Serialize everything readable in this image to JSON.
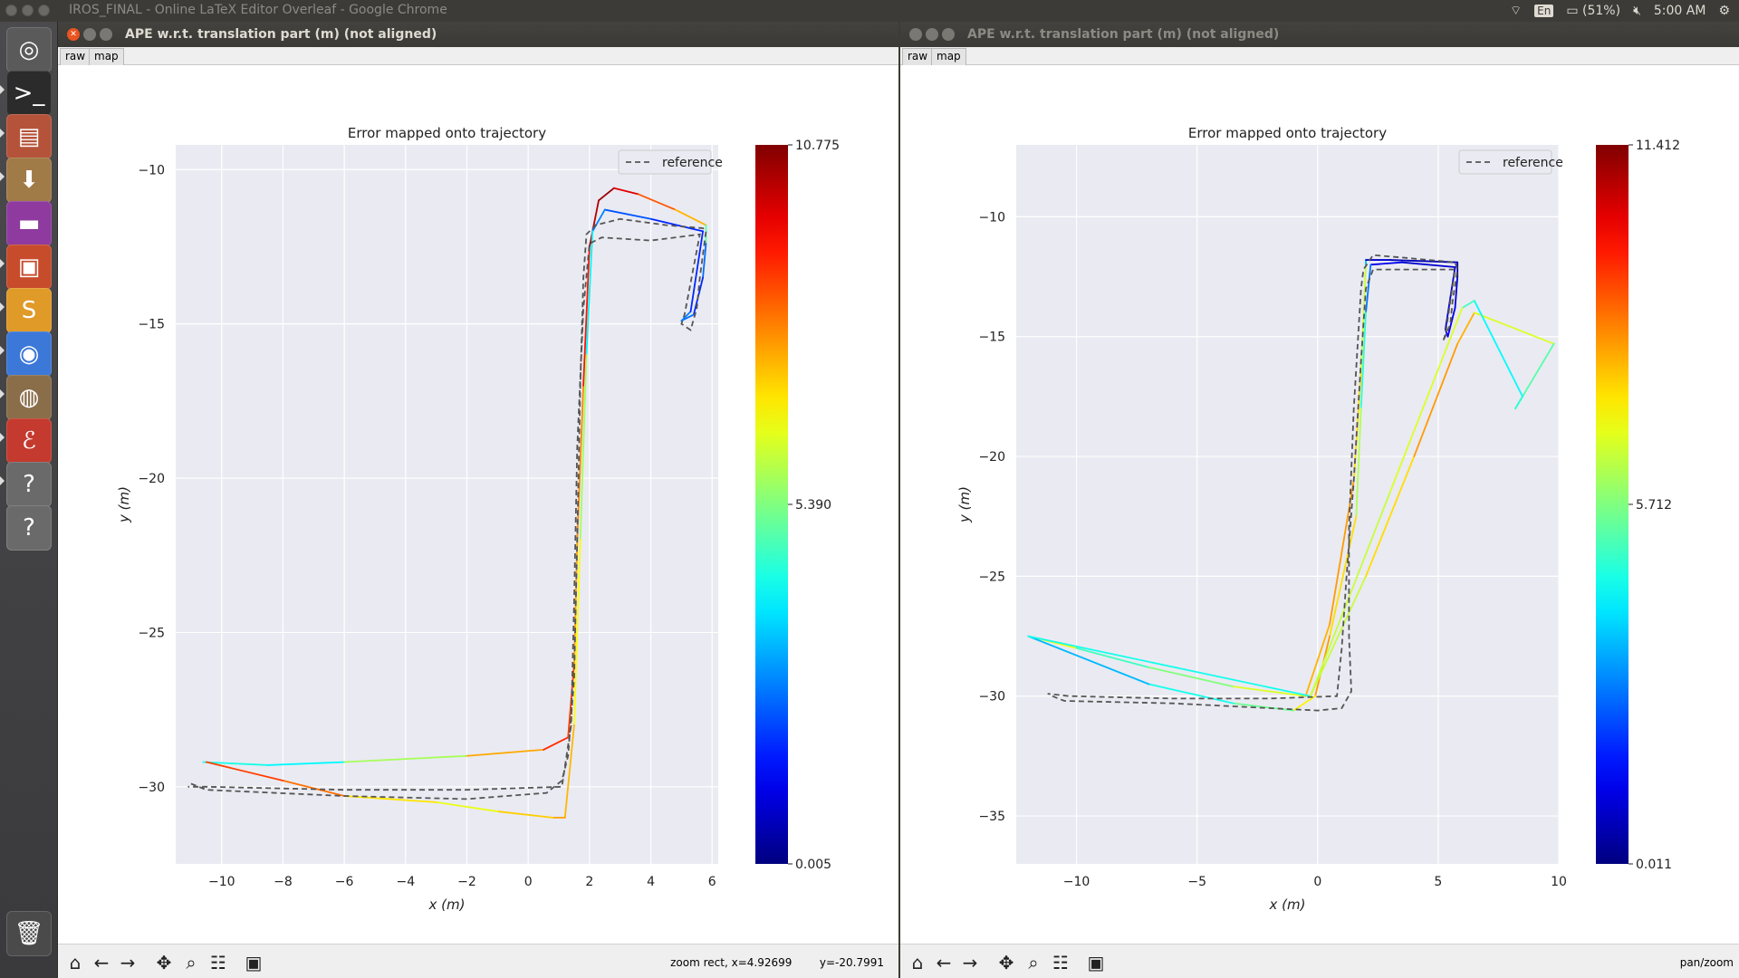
{
  "desktop": {
    "background_title": "IROS_FINAL - Online LaTeX Editor Overleaf - Google Chrome",
    "tray": {
      "language": "En",
      "battery": "(51%)",
      "clock": "5:00 AM"
    }
  },
  "launcher": {
    "items": [
      {
        "name": "ubuntu-dash-icon",
        "glyph": "◎",
        "color": "#5a5a5a"
      },
      {
        "name": "terminal-icon",
        "glyph": ">_",
        "color": "#2b2b2b"
      },
      {
        "name": "file-cabinet-icon",
        "glyph": "▤",
        "color": "#b5533a"
      },
      {
        "name": "archive-download-icon",
        "glyph": "⬇",
        "color": "#a07a47"
      },
      {
        "name": "app-window-icon",
        "glyph": "▬",
        "color": "#8e3a9e"
      },
      {
        "name": "image-viewer-icon",
        "glyph": "▣",
        "color": "#c74c2c"
      },
      {
        "name": "sublime-text-icon",
        "glyph": "S",
        "color": "#e09a28"
      },
      {
        "name": "chrome-icon",
        "glyph": "◉",
        "color": "#3b78d8"
      },
      {
        "name": "web-archive-icon",
        "glyph": "◍",
        "color": "#8a6e4a"
      },
      {
        "name": "pdf-viewer-icon",
        "glyph": "ℰ",
        "color": "#c43a2e"
      },
      {
        "name": "unknown-app-icon",
        "glyph": "?",
        "color": "#6a6a6a"
      },
      {
        "name": "unknown-app-icon",
        "glyph": "?",
        "color": "#6a6a6a"
      },
      {
        "name": "trash-icon",
        "glyph": "🗑",
        "color": "#4a4a4a"
      }
    ]
  },
  "windows": [
    {
      "title": "APE w.r.t. translation part (m) (not aligned)",
      "tabs": [
        "raw",
        "map"
      ],
      "status": "zoom rect, x=4.92699        y=-20.7991"
    },
    {
      "title": "APE w.r.t. translation part (m) (not aligned)",
      "tabs": [
        "raw",
        "map"
      ],
      "status": "pan/zoom"
    }
  ],
  "chart_data": [
    {
      "type": "line",
      "title": "Error mapped onto trajectory",
      "xlabel": "x (m)",
      "ylabel": "y (m)",
      "xlim": [
        -11.5,
        6.2
      ],
      "ylim": [
        -32.5,
        -9.2
      ],
      "xticks": [
        -10,
        -8,
        -6,
        -4,
        -2,
        0,
        2,
        4,
        6
      ],
      "yticks": [
        -10,
        -15,
        -20,
        -25,
        -30
      ],
      "grid": true,
      "legend": {
        "position": "top-right",
        "entries": [
          "reference"
        ]
      },
      "colorbar": {
        "min": 0.005,
        "mid": 5.39,
        "max": 10.775,
        "labels": [
          "10.775",
          "5.390",
          "0.005"
        ],
        "colormap": "jet"
      },
      "series": [
        {
          "name": "reference",
          "style": "dashed",
          "points": [
            [
              -11.0,
              -29.9
            ],
            [
              -10.5,
              -30.1
            ],
            [
              -6.0,
              -30.3
            ],
            [
              -2.0,
              -30.4
            ],
            [
              0.6,
              -30.2
            ],
            [
              1.1,
              -29.8
            ],
            [
              1.3,
              -29.0
            ],
            [
              1.5,
              -26.5
            ],
            [
              1.6,
              -22.0
            ],
            [
              1.7,
              -17.0
            ],
            [
              1.8,
              -13.5
            ],
            [
              1.9,
              -12.1
            ],
            [
              2.2,
              -11.8
            ],
            [
              3.0,
              -11.6
            ],
            [
              4.5,
              -11.8
            ],
            [
              5.7,
              -11.9
            ],
            [
              5.8,
              -12.0
            ],
            [
              5.6,
              -13.5
            ],
            [
              5.5,
              -14.5
            ],
            [
              5.3,
              -15.2
            ],
            [
              5.0,
              -15.0
            ],
            [
              5.1,
              -14.7
            ],
            [
              5.6,
              -12.1
            ],
            [
              4.0,
              -12.3
            ],
            [
              2.4,
              -12.2
            ],
            [
              2.0,
              -12.4
            ],
            [
              1.8,
              -14.5
            ],
            [
              1.6,
              -19.0
            ],
            [
              1.5,
              -24.0
            ],
            [
              1.4,
              -28.0
            ],
            [
              1.1,
              -30.0
            ],
            [
              -2.0,
              -30.1
            ],
            [
              -6.0,
              -30.1
            ],
            [
              -10.5,
              -30.0
            ],
            [
              -11.1,
              -30.0
            ]
          ]
        },
        {
          "name": "",
          "style": "solid",
          "points": [
            [
              -10.6,
              -29.2
            ],
            [
              -8.5,
              -29.3
            ],
            [
              -6.0,
              -29.2
            ],
            [
              -2.0,
              -29.0
            ],
            [
              0.5,
              -28.8
            ],
            [
              1.3,
              -28.4
            ],
            [
              1.5,
              -26.0
            ],
            [
              1.6,
              -22.0
            ],
            [
              1.8,
              -17.0
            ],
            [
              2.0,
              -12.5
            ],
            [
              2.3,
              -11.0
            ],
            [
              2.8,
              -10.6
            ],
            [
              3.6,
              -10.8
            ],
            [
              4.8,
              -11.3
            ],
            [
              5.8,
              -11.8
            ],
            [
              5.8,
              -12.4
            ],
            [
              5.7,
              -13.5
            ],
            [
              5.4,
              -14.7
            ],
            [
              5.0,
              -14.9
            ],
            [
              5.3,
              -14.6
            ],
            [
              5.7,
              -12.0
            ],
            [
              4.0,
              -11.6
            ],
            [
              2.5,
              -11.3
            ],
            [
              2.1,
              -12.0
            ],
            [
              1.9,
              -16.0
            ],
            [
              1.7,
              -22.0
            ],
            [
              1.5,
              -28.0
            ],
            [
              1.2,
              -31.0
            ],
            [
              0.8,
              -31.0
            ],
            [
              -1.0,
              -30.8
            ],
            [
              -3.0,
              -30.5
            ],
            [
              -6.0,
              -30.3
            ],
            [
              -8.0,
              -29.8
            ],
            [
              -10.5,
              -29.2
            ]
          ],
          "errors": [
            5.4,
            3.2,
            4.8,
            6.8,
            8.5,
            9.5,
            8.0,
            7.5,
            8.5,
            10.0,
            10.5,
            10.5,
            9.0,
            8.0,
            7.0,
            3.0,
            2.0,
            1.5,
            3.5,
            2.0,
            1.5,
            2.0,
            2.5,
            3.0,
            5.0,
            6.5,
            7.0,
            8.0,
            7.5,
            7.0,
            6.0,
            8.0,
            8.5,
            9.0
          ]
        }
      ]
    },
    {
      "type": "line",
      "title": "Error mapped onto trajectory",
      "xlabel": "x (m)",
      "ylabel": "y (m)",
      "xlim": [
        -12.5,
        10.0
      ],
      "ylim": [
        -37.0,
        -7.0
      ],
      "xticks": [
        -10,
        -5,
        0,
        5,
        10
      ],
      "yticks": [
        -10,
        -15,
        -20,
        -25,
        -30,
        -35
      ],
      "grid": true,
      "legend": {
        "position": "top-right",
        "entries": [
          "reference"
        ]
      },
      "colorbar": {
        "min": 0.011,
        "mid": 5.712,
        "max": 11.412,
        "labels": [
          "11.412",
          "5.712",
          "0.011"
        ],
        "colormap": "jet"
      },
      "series": [
        {
          "name": "reference",
          "style": "dashed",
          "points": [
            [
              -11.0,
              -30.0
            ],
            [
              -10.5,
              -30.2
            ],
            [
              -6.0,
              -30.3
            ],
            [
              -2.0,
              -30.5
            ],
            [
              0.0,
              -30.6
            ],
            [
              1.0,
              -30.5
            ],
            [
              1.4,
              -29.8
            ],
            [
              1.3,
              -27.5
            ],
            [
              1.3,
              -23.0
            ],
            [
              1.5,
              -18.0
            ],
            [
              1.8,
              -13.0
            ],
            [
              1.9,
              -12.2
            ],
            [
              2.3,
              -11.6
            ],
            [
              3.5,
              -11.7
            ],
            [
              5.7,
              -11.9
            ],
            [
              5.8,
              -12.2
            ],
            [
              5.6,
              -13.5
            ],
            [
              5.5,
              -14.5
            ],
            [
              5.2,
              -15.2
            ],
            [
              5.3,
              -14.9
            ],
            [
              5.7,
              -12.2
            ],
            [
              4.0,
              -12.2
            ],
            [
              2.3,
              -12.2
            ],
            [
              2.0,
              -13.0
            ],
            [
              1.8,
              -16.0
            ],
            [
              1.5,
              -21.0
            ],
            [
              1.2,
              -25.0
            ],
            [
              1.0,
              -28.0
            ],
            [
              0.8,
              -30.0
            ],
            [
              -2.0,
              -30.1
            ],
            [
              -6.0,
              -30.1
            ],
            [
              -10.3,
              -30.0
            ],
            [
              -11.2,
              -29.9
            ]
          ]
        },
        {
          "name": "",
          "style": "solid",
          "points": [
            [
              -12.0,
              -27.5
            ],
            [
              -10.0,
              -28.0
            ],
            [
              -7.0,
              -28.8
            ],
            [
              -3.5,
              -29.6
            ],
            [
              -0.5,
              -30.0
            ],
            [
              0.5,
              -27.0
            ],
            [
              1.5,
              -21.0
            ],
            [
              1.8,
              -16.5
            ],
            [
              2.0,
              -12.0
            ],
            [
              2.0,
              -11.8
            ],
            [
              3.0,
              -11.8
            ],
            [
              5.8,
              -11.9
            ],
            [
              5.8,
              -12.5
            ],
            [
              5.7,
              -13.8
            ],
            [
              5.4,
              -15.0
            ],
            [
              5.3,
              -14.7
            ],
            [
              5.7,
              -12.1
            ],
            [
              3.5,
              -11.9
            ],
            [
              2.2,
              -12.0
            ],
            [
              2.0,
              -14.0
            ],
            [
              1.8,
              -18.0
            ],
            [
              1.6,
              -22.5
            ],
            [
              0.5,
              -27.5
            ],
            [
              -0.1,
              -30.0
            ],
            [
              -1.0,
              -30.6
            ],
            [
              -3.5,
              -30.3
            ],
            [
              -7.0,
              -29.5
            ],
            [
              -12.0,
              -27.5
            ],
            [
              -0.3,
              -30.0
            ],
            [
              2.0,
              -25.0
            ],
            [
              4.0,
              -20.0
            ],
            [
              5.8,
              -15.3
            ],
            [
              6.5,
              -14.0
            ],
            [
              9.8,
              -15.3
            ],
            [
              8.2,
              -18.0
            ],
            [
              8.5,
              -17.5
            ],
            [
              6.5,
              -13.5
            ],
            [
              6.0,
              -13.8
            ],
            [
              3.0,
              -21.5
            ],
            [
              -0.3,
              -30.0
            ]
          ],
          "errors": [
            9.5,
            4.5,
            5.5,
            6.0,
            7.5,
            8.5,
            8.0,
            7.0,
            6.0,
            1.0,
            0.8,
            0.5,
            0.8,
            1.0,
            1.5,
            1.0,
            0.8,
            1.0,
            1.5,
            4.0,
            5.5,
            7.0,
            8.0,
            8.5,
            6.0,
            5.0,
            4.0,
            3.0,
            6.0,
            7.0,
            8.0,
            8.5,
            7.5,
            6.0,
            4.5,
            5.0,
            3.5,
            6.5,
            7.0,
            6.0
          ]
        }
      ]
    }
  ]
}
